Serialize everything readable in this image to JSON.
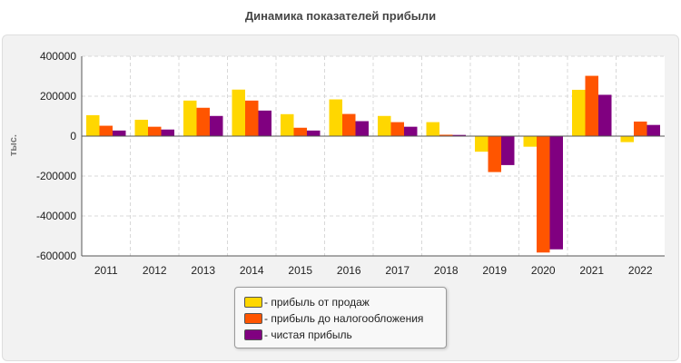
{
  "chart_data": {
    "type": "bar",
    "title": "Динамика показателей прибыли",
    "ylabel": "тыс.",
    "ylim": [
      -600000,
      400000
    ],
    "yticks": [
      "400000",
      "200000",
      "0",
      "-200000",
      "-400000",
      "-600000"
    ],
    "grid": true,
    "legend_position": "bottom",
    "categories": [
      "2011",
      "2012",
      "2013",
      "2014",
      "2015",
      "2016",
      "2017",
      "2018",
      "2019",
      "2020",
      "2021",
      "2022"
    ],
    "series": [
      {
        "name": "- прибыль от продаж",
        "color": "#FFD700",
        "values": [
          105000,
          82000,
          178000,
          233000,
          110000,
          184000,
          101000,
          70000,
          -78000,
          -53000,
          232000,
          -30000
        ]
      },
      {
        "name": "- прибыль до налогообложения",
        "color": "#FF5500",
        "values": [
          52000,
          47000,
          142000,
          178000,
          42000,
          111000,
          70000,
          7000,
          -180000,
          -583000,
          302000,
          73000
        ]
      },
      {
        "name": "- чистая прибыль",
        "color": "#800080",
        "values": [
          28000,
          33000,
          101000,
          128000,
          28000,
          75000,
          47000,
          6000,
          -145000,
          -567000,
          207000,
          56000
        ]
      }
    ]
  }
}
